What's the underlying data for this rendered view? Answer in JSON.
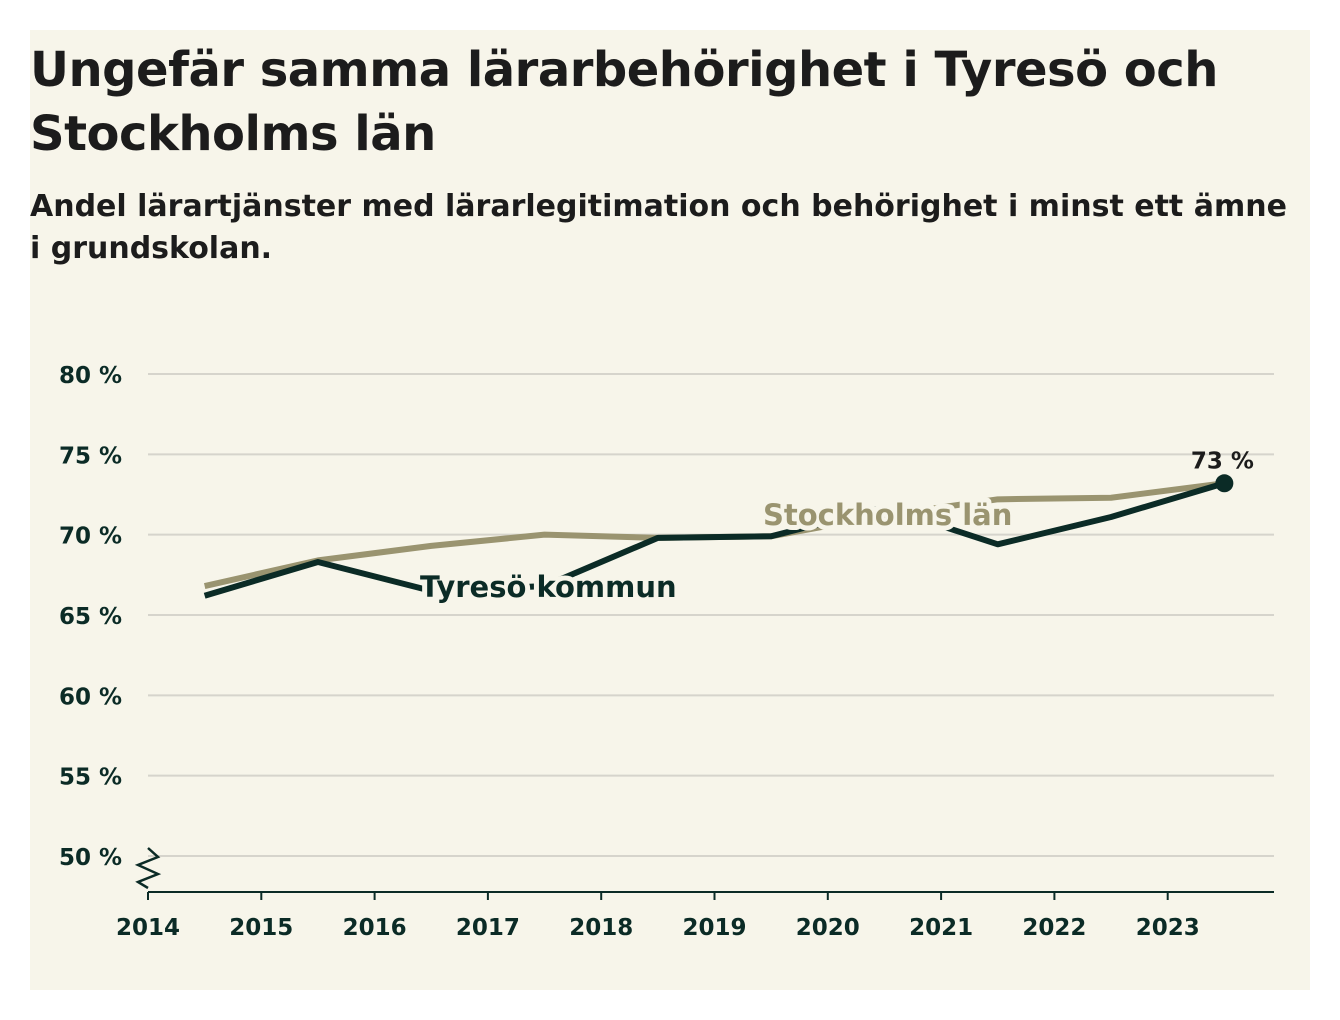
{
  "chart_data": {
    "type": "line",
    "title": "Ungefär samma lärarbehörighet i Tyresö och Stockholms län",
    "subtitle": "Andel lärartjänster med lärarlegitimation och behörighet i minst ett ämne i grundskolan.",
    "x": [
      2014,
      2015,
      2016,
      2017,
      2018,
      2019,
      2020,
      2021,
      2022,
      2023
    ],
    "x_tick_labels": [
      "2014",
      "2015",
      "2016",
      "2017",
      "2018",
      "2019",
      "2020",
      "2021",
      "2022",
      "2023"
    ],
    "y_tick_values": [
      50,
      55,
      60,
      65,
      70,
      75,
      80
    ],
    "y_tick_labels": [
      "50 %",
      "55 %",
      "60 %",
      "65 %",
      "70 %",
      "75 %",
      "80 %"
    ],
    "ylim": [
      48,
      80
    ],
    "series": [
      {
        "name": "Stockholms län",
        "color": "#9a9470",
        "values": [
          66.8,
          68.4,
          69.3,
          70.0,
          69.8,
          69.9,
          71.2,
          72.2,
          72.3,
          73.2
        ]
      },
      {
        "name": "Tyresö kommun",
        "color": "#0b2b26",
        "values": [
          66.2,
          68.3,
          66.5,
          66.8,
          69.8,
          69.9,
          71.7,
          69.4,
          71.1,
          73.2
        ]
      }
    ],
    "annotation": {
      "text": "73 %",
      "series": "Tyresö kommun",
      "x": 2023,
      "value": 73.2
    },
    "axis_break": true
  }
}
